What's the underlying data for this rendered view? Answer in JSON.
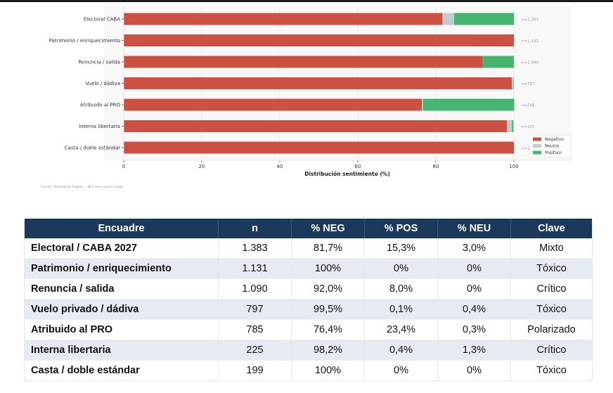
{
  "chart_data": {
    "type": "bar",
    "orientation": "horizontal",
    "stacked": true,
    "categories": [
      "Electoral CABA",
      "Patrimonio / enriquecimiento",
      "Renuncia / salida",
      "Vuelo / dádiva",
      "Atribuido al PRO",
      "Interna libertaria",
      "Casta / doble estándar"
    ],
    "series": [
      {
        "name": "Negativo",
        "color": "#cb5242",
        "values": [
          81.7,
          100,
          92.0,
          99.5,
          76.4,
          98.2,
          100
        ]
      },
      {
        "name": "Neutro",
        "color": "#c5cacd",
        "values": [
          3.0,
          0,
          0,
          0.4,
          0.3,
          1.3,
          0
        ]
      },
      {
        "name": "Positivo",
        "color": "#45b56f",
        "values": [
          15.3,
          0,
          8.0,
          0.1,
          23.4,
          0.4,
          0
        ]
      }
    ],
    "bar_annotations": [
      "n=1,383",
      "n=1,131",
      "n=1,090",
      "n=797",
      "n=785",
      "n=225",
      "n=199"
    ],
    "xlabel": "Distribución sentimiento (%)",
    "ylabel": "",
    "xlim": [
      0,
      100
    ],
    "xticks": [
      0,
      20,
      40,
      60,
      80,
      100
    ],
    "grid": true,
    "legend_position": "bottom-right",
    "footnote": "Fuente: Reputación Digital — NLP semi-supervisado"
  },
  "table": {
    "headers": [
      "Encuadre",
      "n",
      "% NEG",
      "% POS",
      "% NEU",
      "Clave"
    ],
    "rows": [
      [
        "Electoral / CABA 2027",
        "1.383",
        "81,7%",
        "15,3%",
        "3,0%",
        "Mixto"
      ],
      [
        "Patrimonio / enriquecimiento",
        "1.131",
        "100%",
        "0%",
        "0%",
        "Tóxico"
      ],
      [
        "Renuncia / salida",
        "1.090",
        "92,0%",
        "8,0%",
        "0%",
        "Crítico"
      ],
      [
        "Vuelo privado / dádiva",
        "797",
        "99,5%",
        "0,1%",
        "0,4%",
        "Tóxico"
      ],
      [
        "Atribuido al PRO",
        "785",
        "76,4%",
        "23,4%",
        "0,3%",
        "Polarizado"
      ],
      [
        "Interna libertaria",
        "225",
        "98,2%",
        "0,4%",
        "1,3%",
        "Crítico"
      ],
      [
        "Casta / doble estándar",
        "199",
        "100%",
        "0%",
        "0%",
        "Tóxico"
      ]
    ]
  }
}
